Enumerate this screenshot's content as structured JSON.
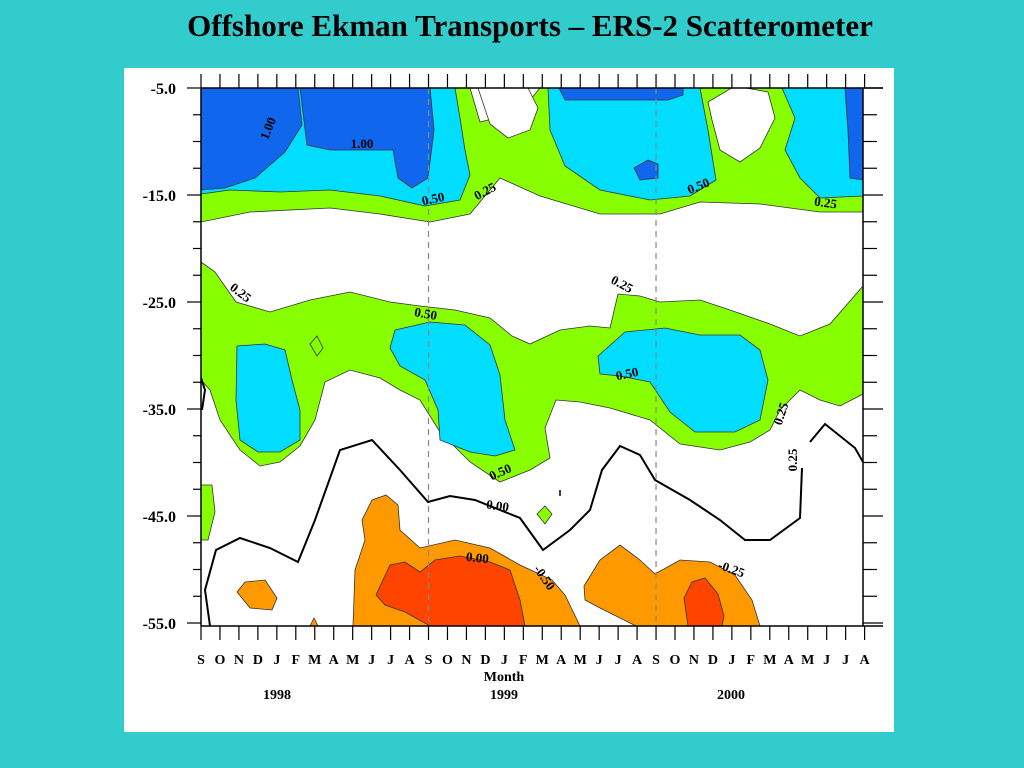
{
  "slide": {
    "title": "Offshore Ekman Transports – ERS-2 Scatterometer"
  },
  "chart_data": {
    "type": "contour",
    "title": "Offshore Ekman Transports – ERS-2 Scatterometer",
    "xlabel": "Month",
    "ylabel": "",
    "x_tick_labels": [
      "S",
      "O",
      "N",
      "D",
      "J",
      "F",
      "M",
      "A",
      "M",
      "J",
      "J",
      "A",
      "S",
      "O",
      "N",
      "D",
      "J",
      "F",
      "M",
      "A",
      "M",
      "J",
      "J",
      "A",
      "S",
      "O",
      "N",
      "D",
      "J",
      "F",
      "M",
      "A",
      "M",
      "J",
      "J",
      "A"
    ],
    "year_labels": [
      "1998",
      "1999",
      "2000"
    ],
    "y_tick_labels": [
      "-5.0",
      "-15.0",
      "-25.0",
      "-35.0",
      "-45.0",
      "-55.0"
    ],
    "ylim": [
      -56,
      -3.3
    ],
    "contour_labels": [
      "1.00",
      "1.00",
      "0.50",
      "0.25",
      "0.50",
      "0.25",
      "0.25",
      "0.50",
      "0.25",
      "0.50",
      "0.25",
      "0.50",
      "0.25",
      "0.00",
      "0.00",
      "-0.50",
      "-0.25",
      "-0.25"
    ],
    "contour_levels": [
      -0.5,
      -0.25,
      0.0,
      0.25,
      0.5,
      1.0
    ],
    "fill_colors": {
      "above_1.00": "#1166ee",
      "0.50_to_1.00": "#00ddff",
      "0.25_to_0.50": "#88ff00",
      "neg_0.25_to_neg_0.50": "#ff9900",
      "below_neg_0.50": "#ff4400",
      "zero_line": "#000000"
    },
    "reference_lines": [
      "S 1998",
      "S 1999"
    ]
  }
}
